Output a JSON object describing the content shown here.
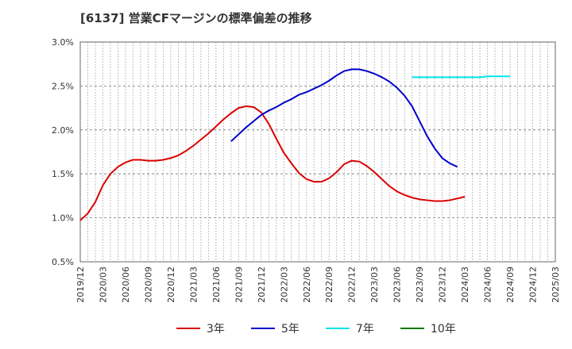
{
  "chart_data": {
    "type": "line",
    "title": "[6137]  営業CFマージンの標準偏差の推移",
    "xlabel": "",
    "ylabel": "",
    "ylim": [
      0.5,
      3.0
    ],
    "y_ticks": [
      "3.0%",
      "2.5%",
      "2.0%",
      "1.5%",
      "1.0%",
      "0.5%"
    ],
    "y_tick_values": [
      3.0,
      2.5,
      2.0,
      1.5,
      1.0,
      0.5
    ],
    "x_ticks": [
      "2019/12",
      "2020/03",
      "2020/06",
      "2020/09",
      "2020/12",
      "2021/03",
      "2021/06",
      "2021/09",
      "2021/12",
      "2022/03",
      "2022/06",
      "2022/09",
      "2022/12",
      "2023/03",
      "2023/06",
      "2023/09",
      "2023/12",
      "2024/03",
      "2024/06",
      "2024/09",
      "2024/12",
      "2025/03"
    ],
    "grid": true,
    "legend_position": "bottom",
    "series": [
      {
        "name": "3年",
        "color": "#dd0000",
        "start": "2019/12",
        "values": [
          0.97,
          1.05,
          1.18,
          1.37,
          1.5,
          1.58,
          1.63,
          1.66,
          1.66,
          1.65,
          1.65,
          1.66,
          1.68,
          1.71,
          1.76,
          1.82,
          1.89,
          1.96,
          2.04,
          2.12,
          2.19,
          2.25,
          2.27,
          2.26,
          2.2,
          2.07,
          1.9,
          1.74,
          1.62,
          1.51,
          1.44,
          1.41,
          1.41,
          1.45,
          1.52,
          1.61,
          1.65,
          1.64,
          1.59,
          1.52,
          1.44,
          1.36,
          1.3,
          1.26,
          1.23,
          1.21,
          1.2,
          1.19,
          1.19,
          1.2,
          1.22,
          1.24
        ]
      },
      {
        "name": "5年",
        "color": "#0000cc",
        "start": "2021/08",
        "values": [
          1.87,
          1.95,
          2.03,
          2.1,
          2.17,
          2.22,
          2.26,
          2.31,
          2.35,
          2.4,
          2.43,
          2.47,
          2.51,
          2.56,
          2.62,
          2.67,
          2.69,
          2.69,
          2.67,
          2.64,
          2.6,
          2.55,
          2.48,
          2.39,
          2.27,
          2.1,
          1.93,
          1.79,
          1.68,
          1.62,
          1.58
        ]
      },
      {
        "name": "7年",
        "color": "#00e5ee",
        "start": "2023/08",
        "values": [
          2.6,
          2.6,
          2.6,
          2.6,
          2.6,
          2.6,
          2.6,
          2.6,
          2.6,
          2.6,
          2.61,
          2.61,
          2.61,
          2.61
        ]
      },
      {
        "name": "10年",
        "color": "#007700",
        "start": "2024/09",
        "values": []
      }
    ]
  }
}
